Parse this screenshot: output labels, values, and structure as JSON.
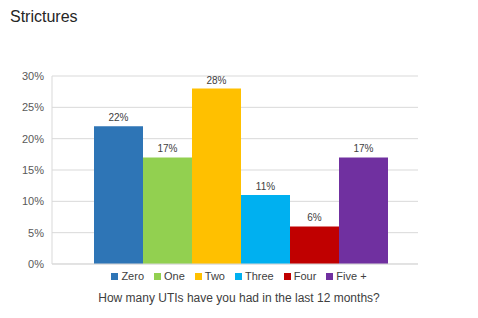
{
  "chart_data": {
    "type": "bar",
    "title": "Strictures",
    "x_label": "How many UTIs have you had in the last 12 months?",
    "categories": [
      "Zero",
      "One",
      "Two",
      "Three",
      "Four",
      "Five +"
    ],
    "values": [
      22,
      17,
      28,
      11,
      6,
      17
    ],
    "value_labels": [
      "22%",
      "17%",
      "28%",
      "11%",
      "6%",
      "17%"
    ],
    "colors": [
      "#2e75b6",
      "#92d050",
      "#ffc000",
      "#00b0f0",
      "#c00000",
      "#7030a0"
    ],
    "ylim": [
      0,
      30
    ],
    "yticks": [
      {
        "value": 0,
        "label": "0%"
      },
      {
        "value": 5,
        "label": "5%"
      },
      {
        "value": 10,
        "label": "10%"
      },
      {
        "value": 15,
        "label": "15%"
      },
      {
        "value": 20,
        "label": "20%"
      },
      {
        "value": 25,
        "label": "25%"
      },
      {
        "value": 30,
        "label": "30%"
      }
    ],
    "grid": true,
    "data_labels": true,
    "tick_labels": "y",
    "legend": "bottom"
  }
}
